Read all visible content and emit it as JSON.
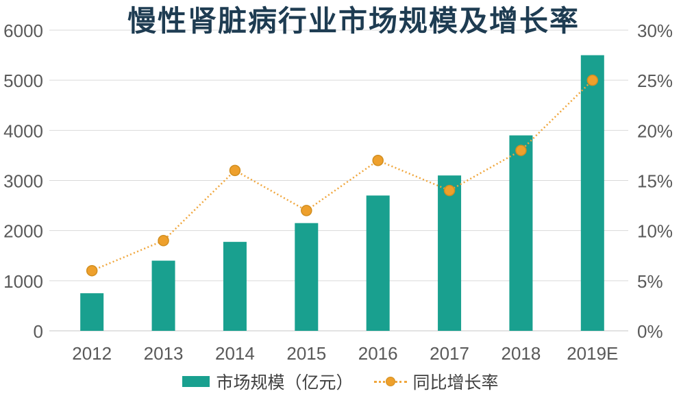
{
  "title": "慢性肾脏病行业市场规模及增长率",
  "colors": {
    "bar": "#19A08F",
    "line": "#F0A63C",
    "marker_fill": "#EEA02C",
    "marker_stroke": "#D18E20",
    "grid": "#D9D9D9",
    "axis_line": "#C6C6C6",
    "axis_text": "#595959",
    "title_text": "#1E3C52",
    "legend_text": "#404040",
    "background": "#FFFFFF"
  },
  "legend": {
    "position": "bottom",
    "items": [
      {
        "label": "市场规模（亿元）",
        "swatch": "bar"
      },
      {
        "label": "同比增长率",
        "swatch": "dotted-line-with-dot"
      }
    ]
  },
  "chart_data": {
    "type": "bar+line combo",
    "title": "慢性肾脏病行业市场规模及增长率",
    "categories": [
      "2012",
      "2013",
      "2014",
      "2015",
      "2016",
      "2017",
      "2018",
      "2019E"
    ],
    "series": [
      {
        "name": "市场规模（亿元）",
        "type": "bar",
        "axis": "left",
        "unit": "亿元",
        "values": [
          750,
          1400,
          1775,
          2150,
          2700,
          3100,
          3900,
          5500
        ]
      },
      {
        "name": "同比增长率",
        "type": "line",
        "line_style": "dotted",
        "marker": "circle",
        "axis": "right",
        "unit": "%",
        "values": [
          6,
          9,
          16,
          12,
          17,
          14,
          18,
          25
        ]
      }
    ],
    "left_axis": {
      "min": 0,
      "max": 6000,
      "step": 1000,
      "tick_labels": [
        "0",
        "1000",
        "2000",
        "3000",
        "4000",
        "5000",
        "6000"
      ]
    },
    "right_axis": {
      "min": 0,
      "max": 30,
      "step": 5,
      "tick_labels": [
        "0%",
        "5%",
        "10%",
        "15%",
        "20%",
        "25%",
        "30%"
      ]
    },
    "grid": "horizontal",
    "legend_position": "bottom"
  }
}
